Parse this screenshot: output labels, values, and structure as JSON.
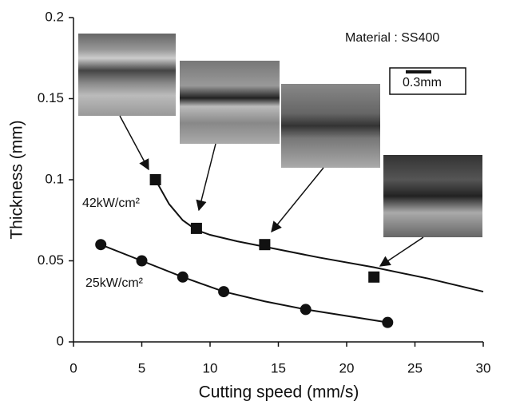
{
  "chart_data": {
    "type": "scatter",
    "xlabel": "Cutting speed (mm/s)",
    "ylabel": "Thickness (mm)",
    "xlim": [
      0,
      30
    ],
    "ylim": [
      0,
      0.2
    ],
    "xticks": [
      0,
      5,
      10,
      15,
      20,
      25,
      30
    ],
    "yticks": [
      0,
      0.05,
      0.1,
      0.15,
      0.2
    ],
    "annotations": [
      "Material : SS400",
      "0.3mm"
    ],
    "series": [
      {
        "name": "42kW/cm²",
        "color": "#111111",
        "marker": "square",
        "x": [
          6,
          9,
          14,
          22
        ],
        "values": [
          0.1,
          0.07,
          0.06,
          0.04
        ],
        "fit": {
          "x": [
            6,
            7,
            8,
            9,
            10,
            12,
            15,
            18,
            22,
            26,
            30
          ],
          "values": [
            0.1,
            0.085,
            0.075,
            0.069,
            0.066,
            0.062,
            0.057,
            0.052,
            0.046,
            0.039,
            0.031
          ]
        }
      },
      {
        "name": "25kW/cm²",
        "color": "#111111",
        "marker": "circle",
        "x": [
          2,
          5,
          8,
          11,
          17,
          23
        ],
        "values": [
          0.06,
          0.05,
          0.04,
          0.031,
          0.02,
          0.012
        ],
        "fit": {
          "x": [
            2,
            5,
            8,
            11,
            14,
            17,
            20,
            23
          ],
          "values": [
            0.06,
            0.05,
            0.04,
            0.031,
            0.025,
            0.02,
            0.016,
            0.012
          ]
        }
      }
    ]
  }
}
